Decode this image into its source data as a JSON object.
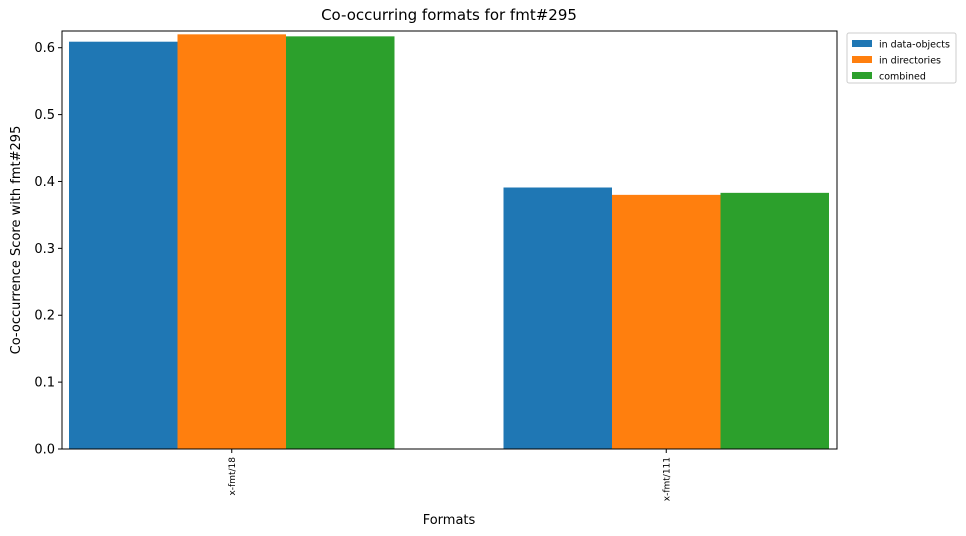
{
  "chart_data": {
    "type": "bar",
    "title": "Co-occurring formats for fmt#295",
    "xlabel": "Formats",
    "ylabel": "Co-occurrence Score with fmt#295",
    "categories": [
      "x-fmt/18",
      "x-fmt/111"
    ],
    "series": [
      {
        "name": "in data-objects",
        "color": "#1f77b4",
        "values": [
          0.609,
          0.391
        ]
      },
      {
        "name": "in directories",
        "color": "#ff7f0e",
        "values": [
          0.62,
          0.38
        ]
      },
      {
        "name": "combined",
        "color": "#2ca02c",
        "values": [
          0.617,
          0.383
        ]
      }
    ],
    "ylim": [
      0,
      0.625
    ],
    "yticks": [
      "0.0",
      "0.1",
      "0.2",
      "0.3",
      "0.4",
      "0.5",
      "0.6"
    ],
    "grid": false,
    "legend_position": "outside top-right"
  }
}
